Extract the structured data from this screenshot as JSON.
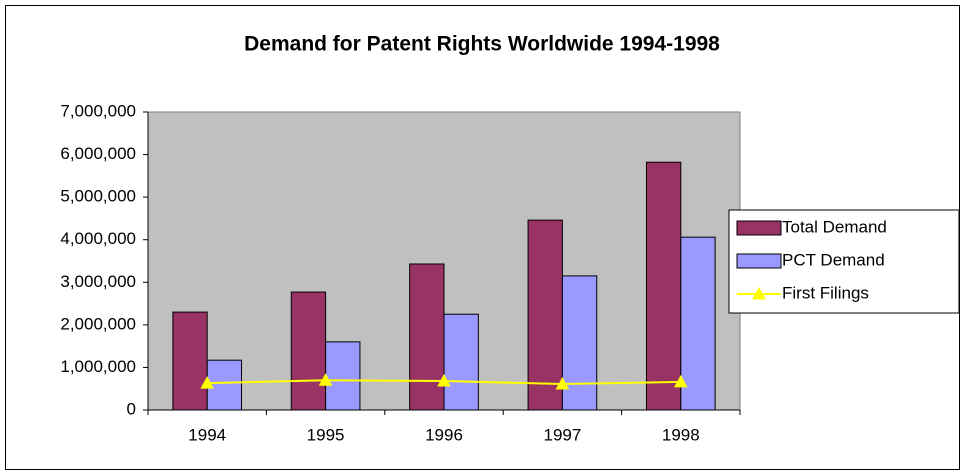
{
  "chart_data": {
    "type": "bar",
    "title": "Demand for Patent Rights Worldwide 1994-1998",
    "categories": [
      "1994",
      "1995",
      "1996",
      "1997",
      "1998"
    ],
    "series": [
      {
        "name": "Total Demand",
        "type": "bar",
        "color": "#993366",
        "values": [
          2300000,
          2770000,
          3430000,
          4460000,
          5820000
        ]
      },
      {
        "name": "PCT Demand",
        "type": "bar",
        "color": "#9999ff",
        "values": [
          1170000,
          1600000,
          2250000,
          3150000,
          4060000
        ]
      },
      {
        "name": "First Filings",
        "type": "line",
        "color": "#ffff00",
        "values": [
          630000,
          700000,
          680000,
          610000,
          660000
        ]
      }
    ],
    "ylim": [
      0,
      7000000
    ],
    "yticks": [
      0,
      {
        "value": 1000000,
        "label": "1,000,000"
      },
      {
        "value": 2000000,
        "label": "2,000,000"
      },
      {
        "value": 3000000,
        "label": "3,000,000"
      },
      {
        "value": 4000000,
        "label": "4,000,000"
      },
      {
        "value": 5000000,
        "label": "5,000,000"
      },
      {
        "value": 6000000,
        "label": "6,000,000"
      },
      {
        "value": 7000000,
        "label": "7,000,000"
      }
    ],
    "legend": "right"
  }
}
